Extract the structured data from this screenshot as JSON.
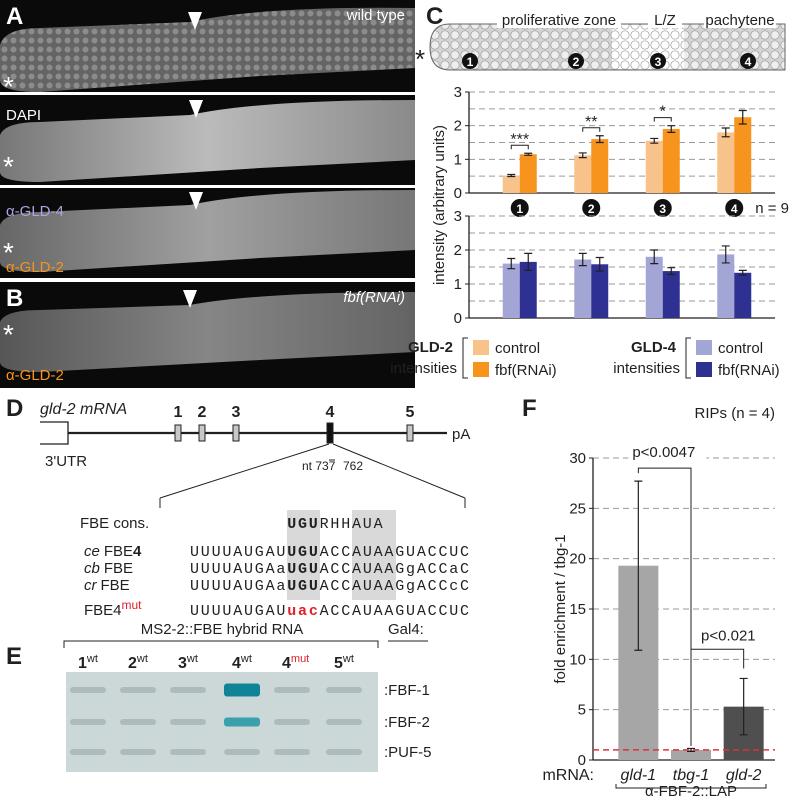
{
  "panel_labels": [
    "A",
    "B",
    "C",
    "D",
    "E",
    "F"
  ],
  "asterisk": "*",
  "panel_a": {
    "condition": "wild type",
    "stains": [
      "DAPI",
      "α-GLD-4",
      "α-GLD-2"
    ]
  },
  "panel_b": {
    "condition": "fbf(RNAi)",
    "stain": "α-GLD-2"
  },
  "panel_c": {
    "zones": [
      "proliferative zone",
      "L/Z",
      "pachytene"
    ],
    "positions": [
      "1",
      "2",
      "3",
      "4"
    ]
  },
  "chart_data": [
    {
      "type": "bar",
      "ylabel": "intensity (arbitrary units)",
      "categories": [
        "1",
        "2",
        "3",
        "4"
      ],
      "series": [
        {
          "name": "control",
          "color": "#f8c38a",
          "values": [
            0.52,
            1.12,
            1.55,
            1.8
          ],
          "errors": [
            0.03,
            0.07,
            0.07,
            0.13
          ]
        },
        {
          "name": "fbf(RNAi)",
          "color": "#f7941d",
          "values": [
            1.15,
            1.6,
            1.9,
            2.25
          ],
          "errors": [
            0.03,
            0.1,
            0.1,
            0.2
          ]
        }
      ],
      "ylim": [
        0,
        3
      ],
      "yticks": [
        0,
        1,
        2,
        3
      ],
      "grid_lines": [
        0.5,
        1,
        1.5,
        2,
        2.5,
        3
      ],
      "significance": [
        "***",
        "**",
        "*"
      ],
      "n_label": "n = 9",
      "legend_title": "GLD-2",
      "legend_subtitle": "intensities"
    },
    {
      "type": "bar",
      "series": [
        {
          "name": "control",
          "color": "#a3a5d5",
          "values": [
            1.6,
            1.72,
            1.8,
            1.87
          ],
          "errors": [
            0.15,
            0.18,
            0.2,
            0.25
          ]
        },
        {
          "name": "fbf(RNAi)",
          "color": "#2e3192",
          "values": [
            1.65,
            1.58,
            1.38,
            1.33
          ],
          "errors": [
            0.25,
            0.2,
            0.1,
            0.07
          ]
        }
      ],
      "ylim": [
        0,
        3
      ],
      "yticks": [
        0,
        1,
        2,
        3
      ],
      "grid_lines": [
        0.5,
        1,
        1.5,
        2,
        2.5,
        3
      ],
      "legend_title": "GLD-4",
      "legend_subtitle": "intensities"
    },
    {
      "type": "bar",
      "title": "RIPs (n = 4)",
      "ylabel": "fold enrichment / tbg-1",
      "xlabel": "mRNA:",
      "group_label": "α-FBF-2::LAP",
      "categories": [
        "gld-1",
        "tbg-1",
        "gld-2"
      ],
      "values": [
        19.3,
        1,
        5.3
      ],
      "errors": [
        8.4,
        0.15,
        2.8
      ],
      "colors": [
        "#a6a6a6",
        "#a6a6a6",
        "#4f4f4f"
      ],
      "ylim": [
        0,
        30
      ],
      "yticks": [
        0,
        5,
        10,
        15,
        20,
        25,
        30
      ],
      "grid": true,
      "reference_line": 1,
      "reference_color": "#e0303a",
      "annotations": [
        "p<0.0047",
        "p<0.021"
      ]
    }
  ],
  "panel_d": {
    "title": "gld-2 mRNA",
    "utr": "3'UTR",
    "polya": "pA",
    "exons": [
      "1",
      "2",
      "3",
      "4",
      "5"
    ],
    "nt_labels": [
      "nt 737",
      "762"
    ],
    "consensus_label": "FBE cons.",
    "consensus": [
      "UGU",
      "RHH",
      "AUA"
    ],
    "rows": [
      {
        "species": "ce",
        "name": "FBE",
        "suffix": "4",
        "segments": [
          "UUUUAUGAU",
          "UGU",
          "ACC",
          "AUAA",
          "GUACCUC"
        ]
      },
      {
        "species": "cb",
        "name": "FBE",
        "segments": [
          "UUUUAUGAa",
          "UGU",
          "ACC",
          "AUAA",
          "GgACCaC"
        ]
      },
      {
        "species": "cr",
        "name": "FBE",
        "segments": [
          "UUUUAUGAa",
          "UGU",
          "ACC",
          "AUAA",
          "GgACCcC"
        ]
      },
      {
        "name": "FBE4",
        "superscript": "mut",
        "segments": [
          "UUUUAUGAU",
          "uac",
          "ACC",
          "AUAA",
          "GUACCUC"
        ]
      }
    ]
  },
  "panel_e": {
    "title": "MS2-2::FBE  hybrid RNA",
    "gal4": "Gal4:",
    "lanes": [
      {
        "label": "1",
        "tag": "wt"
      },
      {
        "label": "2",
        "tag": "wt"
      },
      {
        "label": "3",
        "tag": "wt"
      },
      {
        "label": "4",
        "tag": "wt"
      },
      {
        "label": "4",
        "tag": "mut"
      },
      {
        "label": "5",
        "tag": "wt"
      }
    ],
    "rows": [
      ":FBF-1",
      ":FBF-2",
      ":PUF-5"
    ]
  }
}
